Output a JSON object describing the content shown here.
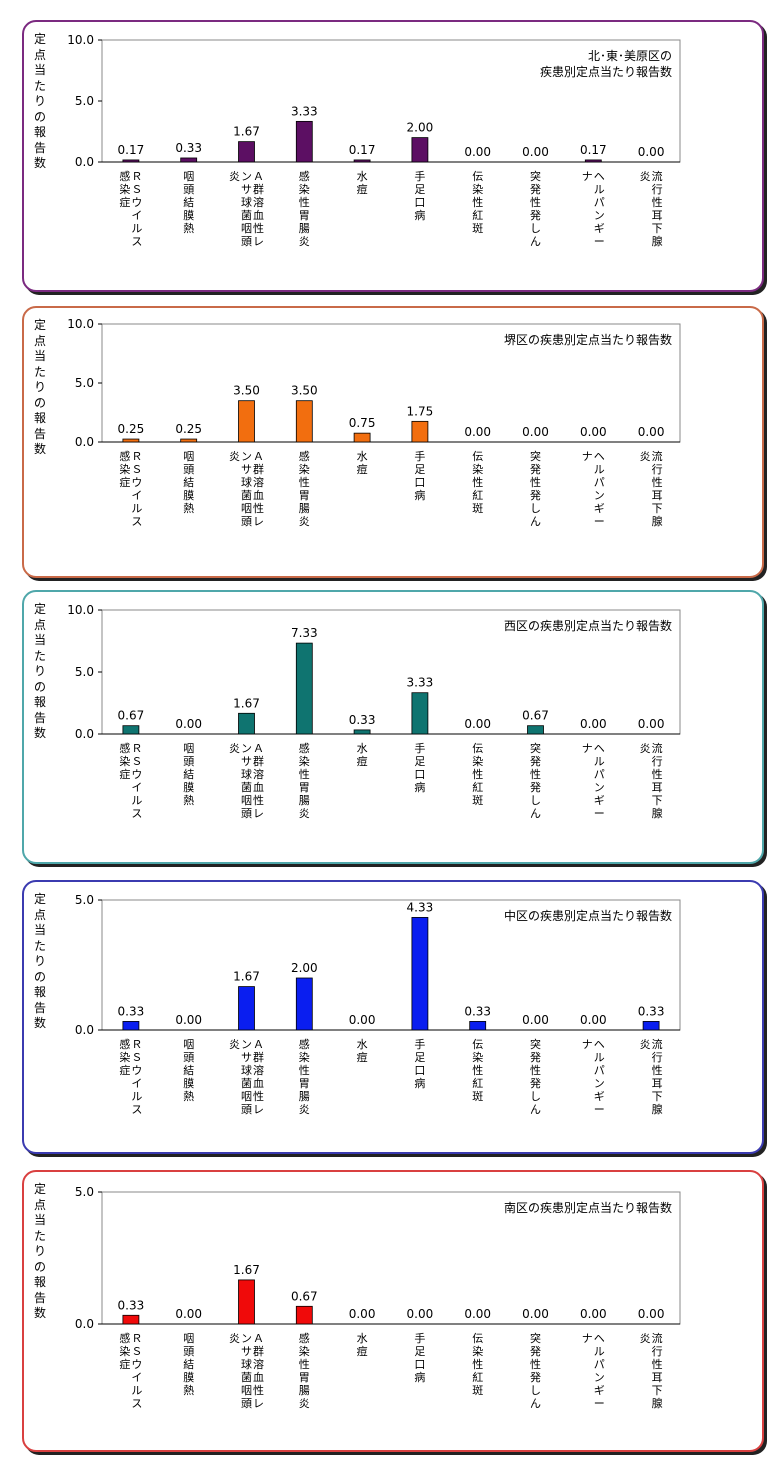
{
  "chart_data": [
    {
      "type": "bar",
      "title": [
        "北･東･美原区の",
        "疾患別定点当たり報告数"
      ],
      "ylabel": "定点当たりの報告数",
      "ylim": [
        0,
        10
      ],
      "yticks": [
        "0.0",
        "5.0",
        "10.0"
      ],
      "categories": [
        "ＲＳウイルス感染症",
        "咽頭結膜熱",
        "Ａ群溶血性レンサ球菌咽頭炎",
        "感染性胃腸炎",
        "水痘",
        "手足口病",
        "伝染性紅斑",
        "突発性発しん",
        "ヘルパンギーナ",
        "流行性耳下腺炎"
      ],
      "values": [
        0.17,
        0.33,
        1.67,
        3.33,
        0.17,
        2.0,
        0.0,
        0.0,
        0.17,
        0.0
      ],
      "value_labels": [
        "0.17",
        "0.33",
        "1.67",
        "3.33",
        "0.17",
        "2.00",
        "0.00",
        "0.00",
        "0.17",
        "0.00"
      ],
      "bar_color": "#5C0F63",
      "border_color": "#7B2A80"
    },
    {
      "type": "bar",
      "title": [
        "堺区の疾患別定点当たり報告数"
      ],
      "ylabel": "定点当たりの報告数",
      "ylim": [
        0,
        10
      ],
      "yticks": [
        "0.0",
        "5.0",
        "10.0"
      ],
      "categories": [
        "ＲＳウイルス感染症",
        "咽頭結膜熱",
        "Ａ群溶血性レンサ球菌咽頭炎",
        "感染性胃腸炎",
        "水痘",
        "手足口病",
        "伝染性紅斑",
        "突発性発しん",
        "ヘルパンギーナ",
        "流行性耳下腺炎"
      ],
      "values": [
        0.25,
        0.25,
        3.5,
        3.5,
        0.75,
        1.75,
        0.0,
        0.0,
        0.0,
        0.0
      ],
      "value_labels": [
        "0.25",
        "0.25",
        "3.50",
        "3.50",
        "0.75",
        "1.75",
        "0.00",
        "0.00",
        "0.00",
        "0.00"
      ],
      "bar_color": "#F26E0F",
      "border_color": "#C96A48"
    },
    {
      "type": "bar",
      "title": [
        "西区の疾患別定点当たり報告数"
      ],
      "ylabel": "定点当たりの報告数",
      "ylim": [
        0,
        10
      ],
      "yticks": [
        "0.0",
        "5.0",
        "10.0"
      ],
      "categories": [
        "ＲＳウイルス感染症",
        "咽頭結膜熱",
        "Ａ群溶血性レンサ球菌咽頭炎",
        "感染性胃腸炎",
        "水痘",
        "手足口病",
        "伝染性紅斑",
        "突発性発しん",
        "ヘルパンギーナ",
        "流行性耳下腺炎"
      ],
      "values": [
        0.67,
        0.0,
        1.67,
        7.33,
        0.33,
        3.33,
        0.0,
        0.67,
        0.0,
        0.0
      ],
      "value_labels": [
        "0.67",
        "0.00",
        "1.67",
        "7.33",
        "0.33",
        "3.33",
        "0.00",
        "0.67",
        "0.00",
        "0.00"
      ],
      "bar_color": "#0F7470",
      "border_color": "#4FA7AA"
    },
    {
      "type": "bar",
      "title": [
        "中区の疾患別定点当たり報告数"
      ],
      "ylabel": "定点当たりの報告数",
      "ylim": [
        0,
        5
      ],
      "yticks": [
        "0.0",
        "5.0"
      ],
      "categories": [
        "ＲＳウイルス感染症",
        "咽頭結膜熱",
        "Ａ群溶血性レンサ球菌咽頭炎",
        "感染性胃腸炎",
        "水痘",
        "手足口病",
        "伝染性紅斑",
        "突発性発しん",
        "ヘルパンギーナ",
        "流行性耳下腺炎"
      ],
      "values": [
        0.33,
        0.0,
        1.67,
        2.0,
        0.0,
        4.33,
        0.33,
        0.0,
        0.0,
        0.33
      ],
      "value_labels": [
        "0.33",
        "0.00",
        "1.67",
        "2.00",
        "0.00",
        "4.33",
        "0.33",
        "0.00",
        "0.00",
        "0.33"
      ],
      "bar_color": "#0A1EF0",
      "border_color": "#3B3BB0"
    },
    {
      "type": "bar",
      "title": [
        "南区の疾患別定点当たり報告数"
      ],
      "ylabel": "定点当たりの報告数",
      "ylim": [
        0,
        5
      ],
      "yticks": [
        "0.0",
        "5.0"
      ],
      "categories": [
        "ＲＳウイルス感染症",
        "咽頭結膜熱",
        "Ａ群溶血性レンサ球菌咽頭炎",
        "感染性胃腸炎",
        "水痘",
        "手足口病",
        "伝染性紅斑",
        "突発性発しん",
        "ヘルパンギーナ",
        "流行性耳下腺炎"
      ],
      "values": [
        0.33,
        0.0,
        1.67,
        0.67,
        0.0,
        0.0,
        0.0,
        0.0,
        0.0,
        0.0
      ],
      "value_labels": [
        "0.33",
        "0.00",
        "1.67",
        "0.67",
        "0.00",
        "0.00",
        "0.00",
        "0.00",
        "0.00",
        "0.00"
      ],
      "bar_color": "#F00A0A",
      "border_color": "#D94040"
    }
  ]
}
